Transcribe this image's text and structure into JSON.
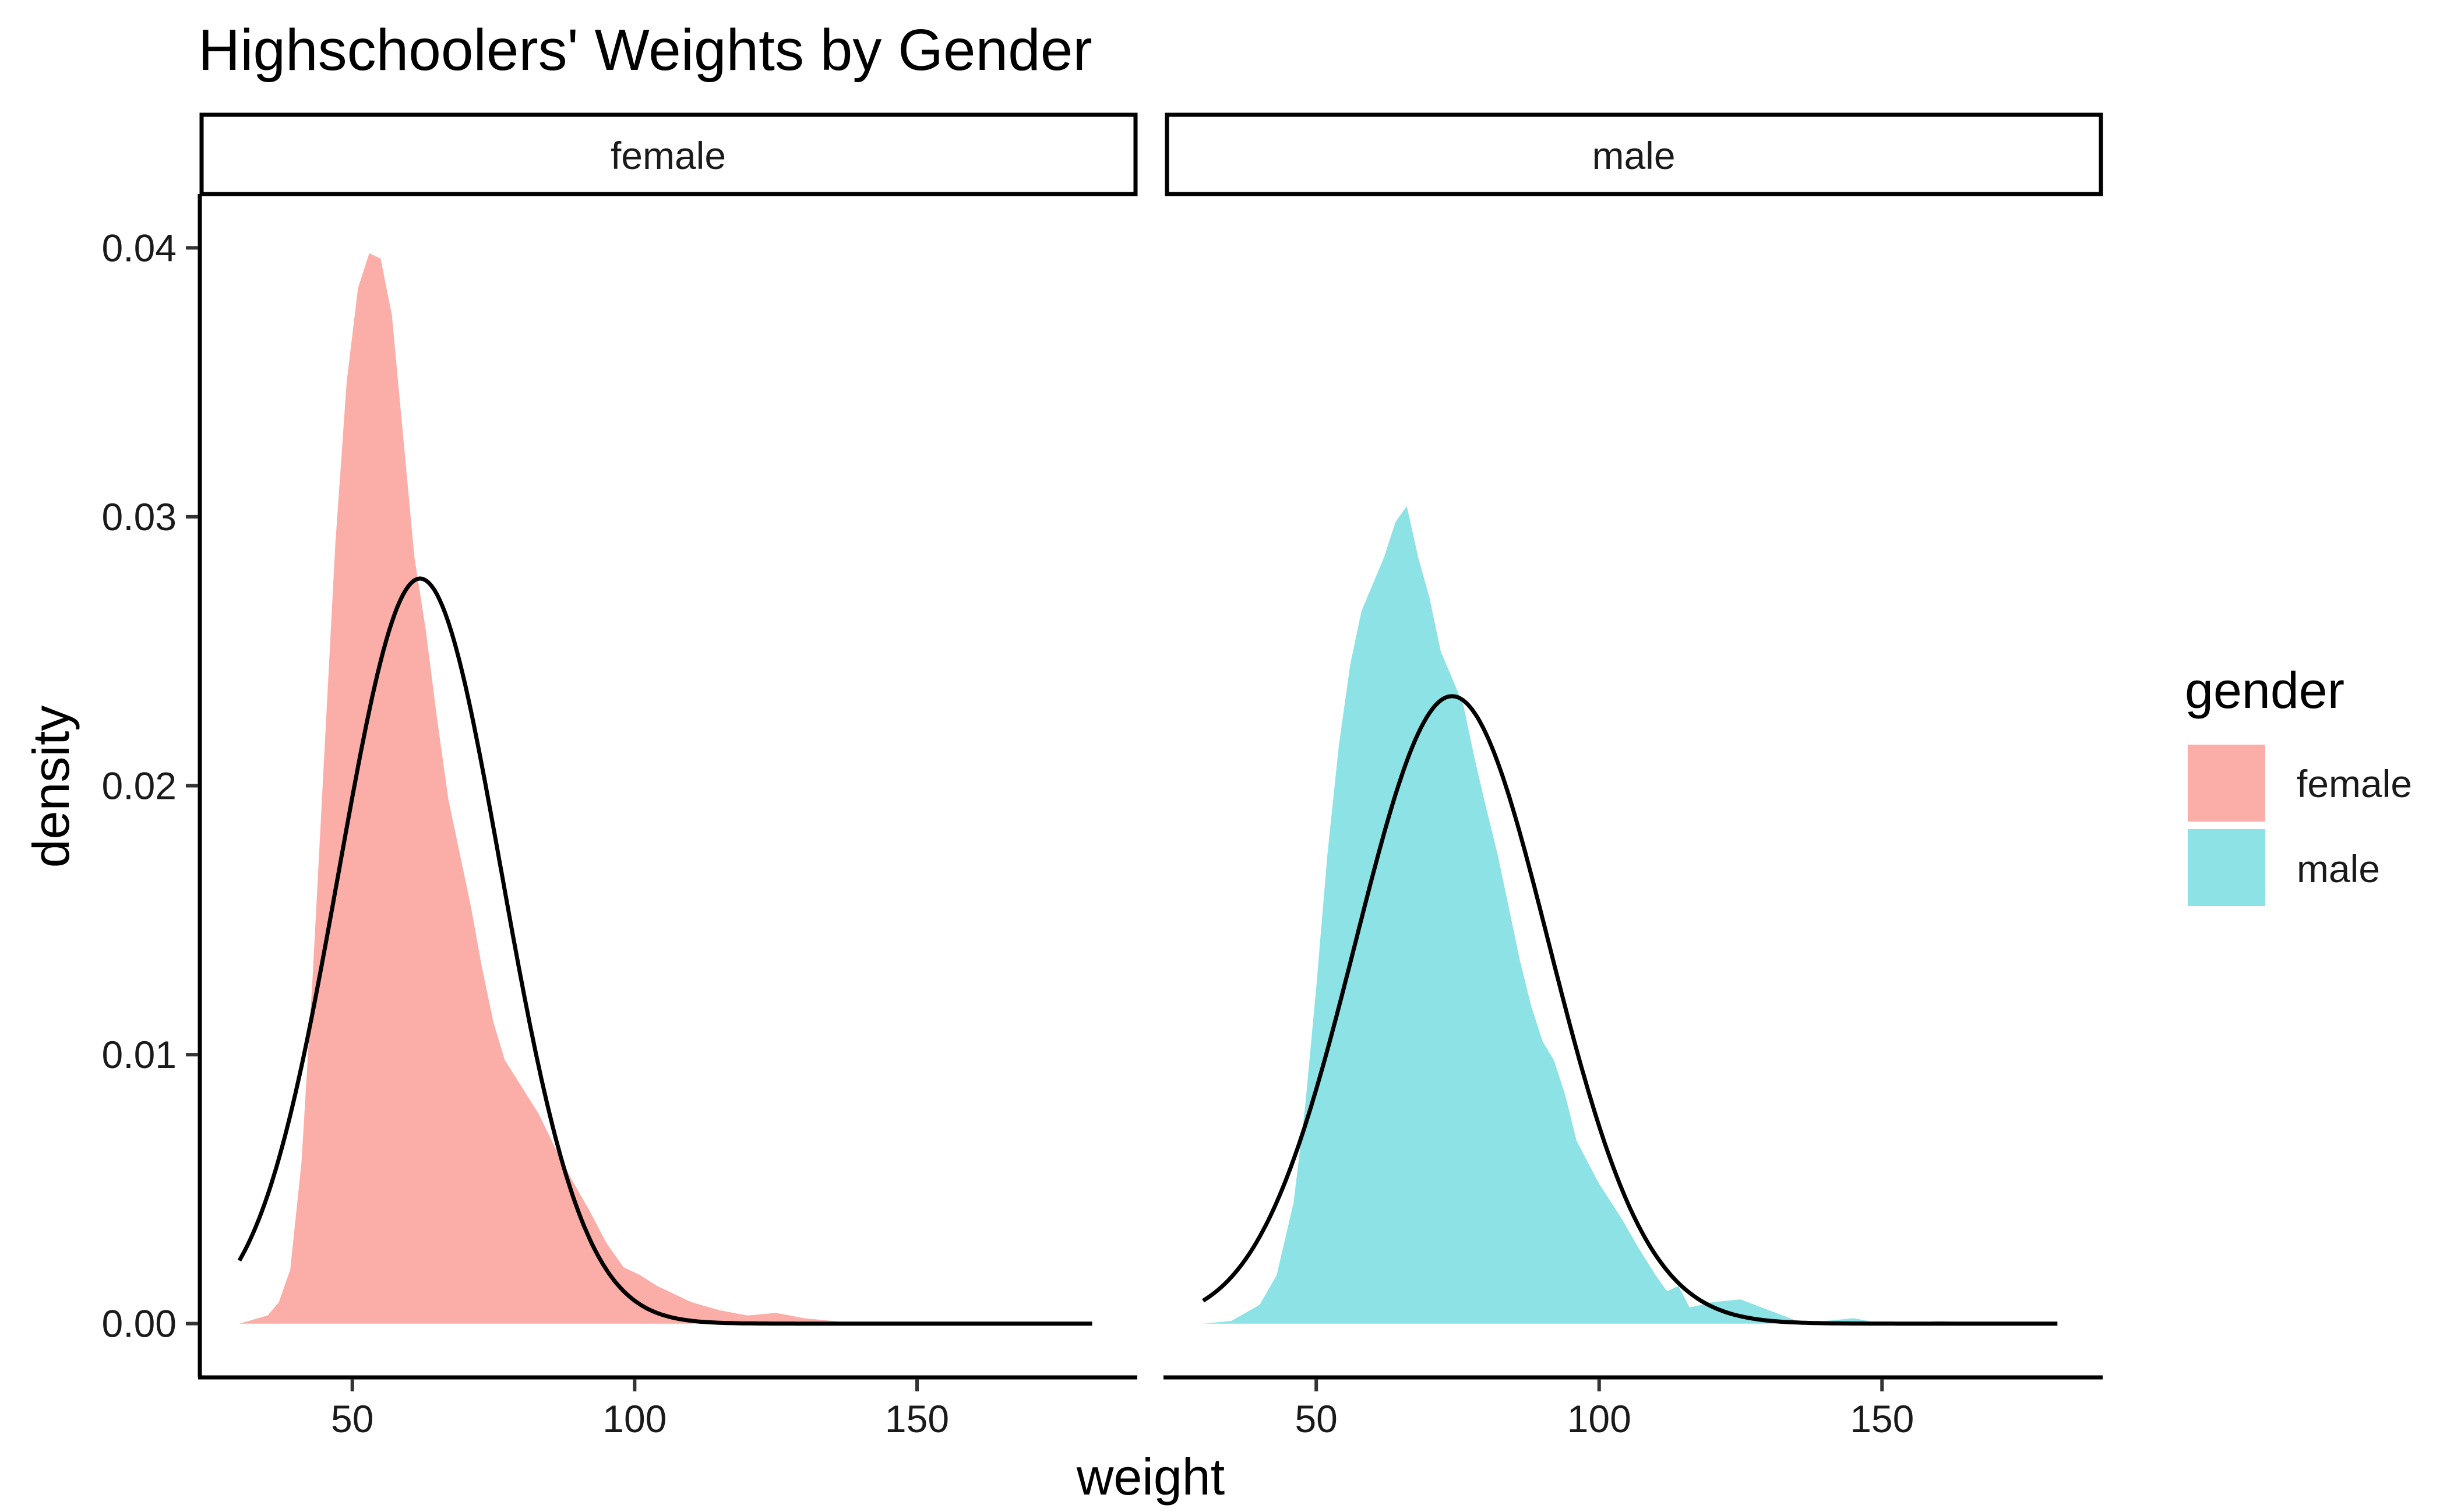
{
  "chart_data": {
    "type": "area",
    "title": "Highschoolers' Weights by Gender",
    "xlabel": "weight",
    "ylabel": "density",
    "xlim": [
      23,
      189
    ],
    "ylim": [
      -0.002,
      0.042
    ],
    "xticks": [
      50,
      100,
      150
    ],
    "xtick_labels": [
      "50",
      "100",
      "150"
    ],
    "yticks": [
      0.0,
      0.01,
      0.02,
      0.03,
      0.04
    ],
    "ytick_labels": [
      "0.00",
      "0.01",
      "0.02",
      "0.03",
      "0.04"
    ],
    "grid": false,
    "legend": {
      "title": "gender",
      "position": "right",
      "entries": [
        {
          "label": "female",
          "color": "#F8766D"
        },
        {
          "label": "male",
          "color": "#00BFC4"
        }
      ]
    },
    "panels": [
      {
        "label": "female",
        "fill_color": "#F8766D",
        "fill_alpha": 0.6,
        "density": {
          "x": [
            30,
            35,
            37,
            39,
            41,
            43,
            45,
            47,
            49,
            51,
            53,
            55,
            57,
            59,
            61,
            63,
            65,
            67,
            69,
            71,
            73,
            75,
            77,
            80,
            83,
            86,
            89,
            92,
            95,
            98,
            101,
            104,
            107,
            110,
            115,
            120,
            125,
            130,
            135,
            140,
            150,
            160,
            170,
            180
          ],
          "y": [
            0.0,
            0.0003,
            0.0008,
            0.002,
            0.006,
            0.013,
            0.021,
            0.029,
            0.035,
            0.0385,
            0.0398,
            0.0396,
            0.0375,
            0.033,
            0.0285,
            0.0258,
            0.0225,
            0.0195,
            0.0175,
            0.0155,
            0.0132,
            0.0112,
            0.0098,
            0.0088,
            0.0078,
            0.0065,
            0.0053,
            0.0042,
            0.003,
            0.0021,
            0.0018,
            0.0014,
            0.0011,
            0.0008,
            0.0005,
            0.0003,
            0.0004,
            0.0002,
            0.0001,
            0.0,
            0.0,
            0.0,
            0.0,
            0.0
          ]
        },
        "normal_curve": {
          "mean": 62,
          "sd": 14.4,
          "x_range": [
            30,
            181
          ]
        }
      },
      {
        "label": "male",
        "fill_color": "#00BFC4",
        "fill_alpha": 0.45,
        "density": {
          "x": [
            30,
            35,
            40,
            43,
            46,
            48,
            50,
            52,
            54,
            56,
            58,
            60,
            62,
            64,
            66,
            68,
            70,
            72,
            74,
            76,
            78,
            80,
            82,
            84,
            86,
            88,
            90,
            92,
            94,
            96,
            100,
            104,
            107,
            110,
            112,
            114,
            116,
            120,
            125,
            130,
            135,
            140,
            145,
            150,
            155,
            160,
            170,
            180
          ],
          "y": [
            0.0,
            0.0001,
            0.0007,
            0.0018,
            0.0045,
            0.008,
            0.0125,
            0.0175,
            0.0215,
            0.0245,
            0.0265,
            0.0275,
            0.0285,
            0.0298,
            0.0304,
            0.0285,
            0.027,
            0.025,
            0.024,
            0.023,
            0.021,
            0.0192,
            0.0175,
            0.0155,
            0.0135,
            0.0118,
            0.0105,
            0.0098,
            0.0085,
            0.0068,
            0.0052,
            0.0039,
            0.0028,
            0.0018,
            0.0012,
            0.0014,
            0.0006,
            0.0008,
            0.0009,
            0.0005,
            0.0001,
            0.0001,
            0.0002,
            0.0,
            0.0,
            0.0001,
            0.0,
            0.0
          ]
        },
        "normal_curve": {
          "mean": 74,
          "sd": 17.1,
          "x_range": [
            30,
            181
          ]
        }
      }
    ]
  }
}
